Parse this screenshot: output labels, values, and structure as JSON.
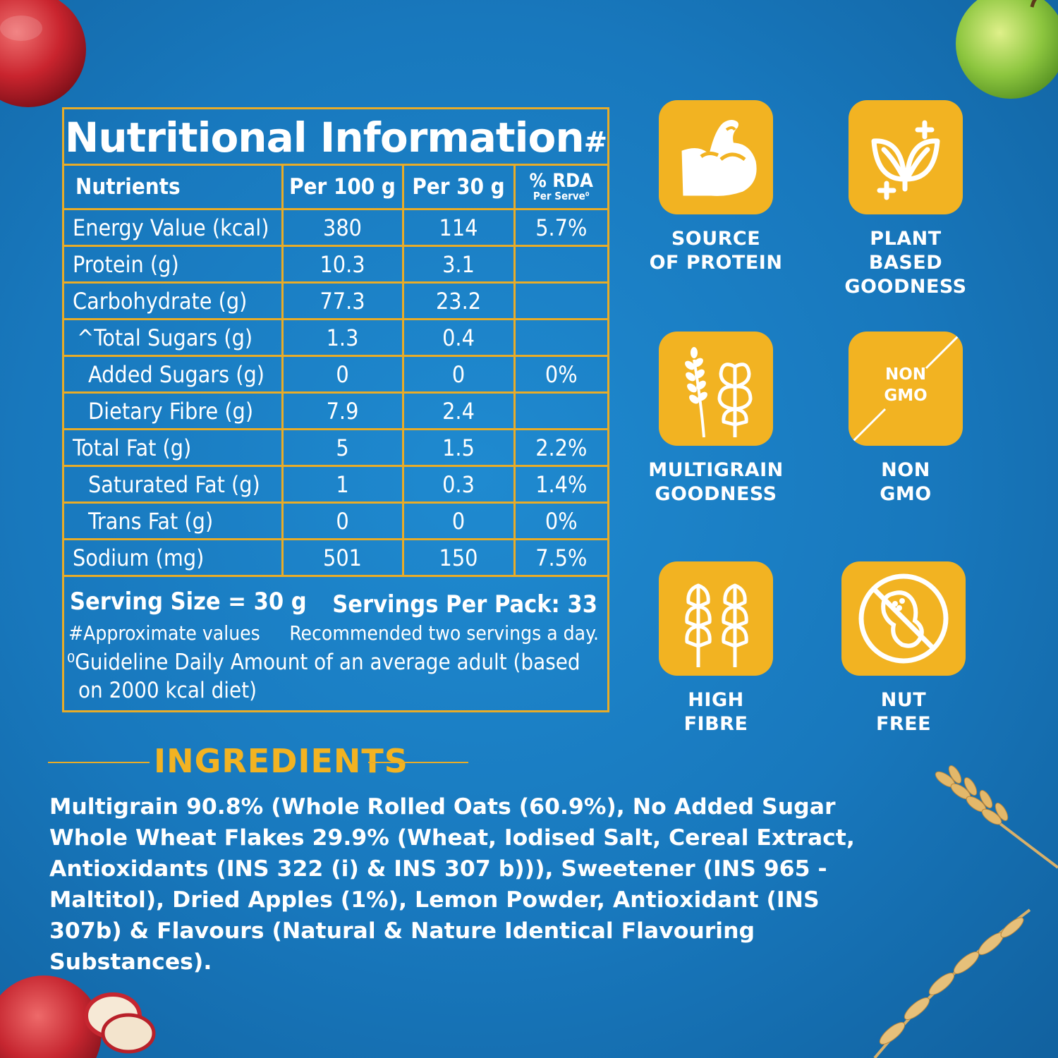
{
  "nutrition": {
    "title": "Nutritional Information",
    "title_mark": "#",
    "headers": {
      "nutrients": "Nutrients",
      "per100": "Per 100 g",
      "per30": "Per 30 g",
      "rda": "% RDA",
      "rda_sub": "Per Serve⁰"
    },
    "rows": [
      {
        "name": "Energy Value (kcal)",
        "per100": "380",
        "per30": "114",
        "rda": "5.7%"
      },
      {
        "name": "Protein (g)",
        "per100": "10.3",
        "per30": "3.1",
        "rda": ""
      },
      {
        "name": "Carbohydrate (g)",
        "per100": "77.3",
        "per30": "23.2",
        "rda": ""
      },
      {
        "name": "^Total Sugars (g)",
        "per100": "1.3",
        "per30": "0.4",
        "rda": ""
      },
      {
        "name": "Added Sugars (g)",
        "per100": "0",
        "per30": "0",
        "rda": "0%"
      },
      {
        "name": "Dietary Fibre (g)",
        "per100": "7.9",
        "per30": "2.4",
        "rda": ""
      },
      {
        "name": "Total Fat (g)",
        "per100": "5",
        "per30": "1.5",
        "rda": "2.2%"
      },
      {
        "name": "Saturated Fat (g)",
        "per100": "1",
        "per30": "0.3",
        "rda": "1.4%"
      },
      {
        "name": "Trans Fat (g)",
        "per100": "0",
        "per30": "0",
        "rda": "0%"
      },
      {
        "name": "Sodium (mg)",
        "per100": "501",
        "per30": "150",
        "rda": "7.5%"
      }
    ],
    "footer": {
      "serving_size": "Serving Size = 30 g",
      "servings_per_pack": "Servings Per Pack: 33",
      "approx": "#Approximate values",
      "recommended": "Recommended two servings a day.",
      "guideline_line1": "⁰Guideline Daily Amount of an average adult (based",
      "guideline_line2": "on 2000 kcal diet)"
    }
  },
  "badges": [
    {
      "icon": "flexed-arm-icon",
      "label_line1": "SOURCE",
      "label_line2": "OF PROTEIN"
    },
    {
      "icon": "leaves-plus-icon",
      "label_line1": "PLANT",
      "label_line2": "BASED GOODNESS"
    },
    {
      "icon": "multigrain-icon",
      "label_line1": "MULTIGRAIN",
      "label_line2": "GOODNESS"
    },
    {
      "icon": "non-gmo-icon",
      "icon_text_line1": "NON",
      "icon_text_line2": "GMO",
      "label_line1": "NON",
      "label_line2": "GMO"
    },
    {
      "icon": "wheat-stalks-icon",
      "label_line1": "HIGH",
      "label_line2": "FIBRE"
    },
    {
      "icon": "no-nut-icon",
      "label_line1": "NUT",
      "label_line2": "FREE"
    }
  ],
  "ingredients": {
    "title": "INGREDIENTS",
    "text": "Multigrain 90.8% (Whole Rolled Oats (60.9%), No Added Sugar Whole Wheat Flakes 29.9% (Wheat, Iodised Salt, Cereal Extract, Antioxidants (INS 322 (i) & INS 307 b))), Sweetener (INS 965 - Maltitol), Dried Apples (1%), Lemon Powder, Antioxidant (INS 307b) & Flavours (Natural & Nature Identical Flavouring Substances)."
  },
  "colors": {
    "background": "#1a7fc4",
    "accent_gold": "#f2b322",
    "table_border": "#e8ac28",
    "text": "#ffffff"
  }
}
